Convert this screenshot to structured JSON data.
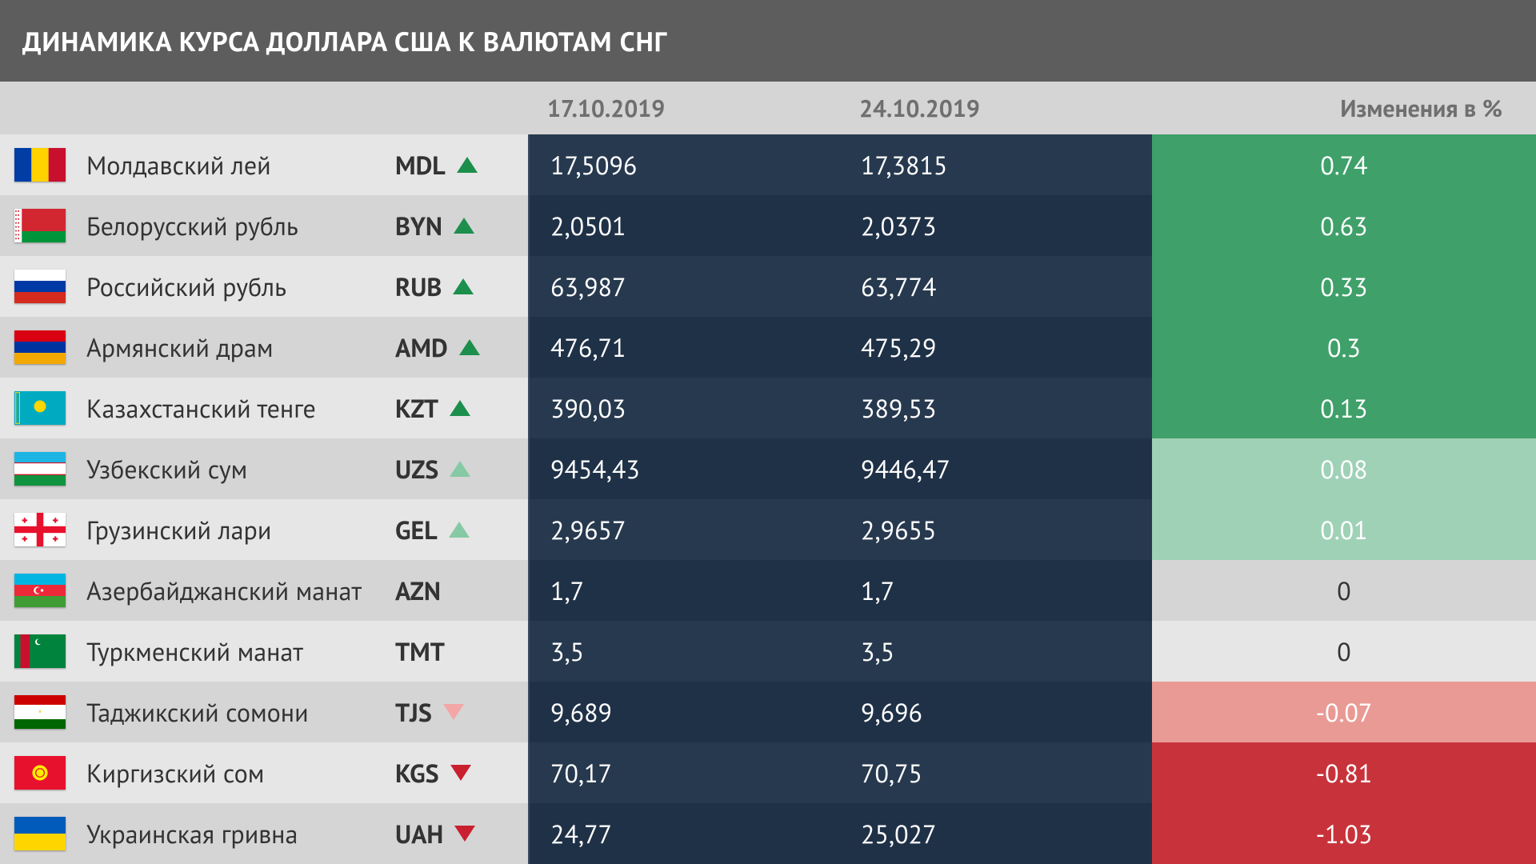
{
  "title": "ДИНАМИКА КУРСА ДОЛЛАРА США К ВАЛЮТАМ СНГ",
  "columns": {
    "date1": "17.10.2019",
    "date2": "24.10.2019",
    "change": "Изменения в %"
  },
  "colors": {
    "page_bg": "#5d5d5d",
    "header_bg": "#d5d5d5",
    "header_text": "#6f6f6f",
    "row_bg": "#e6e6e6",
    "row_alt_bg": "#d5d5d5",
    "value_bg_a": "#27394e",
    "value_bg_b": "#1f3147",
    "arrow_up_strong": "#1c8f4c",
    "arrow_up_light": "#86c9a5",
    "arrow_down_light": "#f3a6a6",
    "arrow_down_strong": "#c8202f",
    "change_pos_strong": "#3fa06a",
    "change_pos_light": "#9fd1b6",
    "change_neutral_bg": "#e6e6e6",
    "change_neutral_alt_bg": "#d5d5d5",
    "change_neutral_text": "#333333",
    "change_neg_light": "#e99a94",
    "change_neg_strong": "#c8333b"
  },
  "rows": [
    {
      "name": "Молдавский лей",
      "code": "MDL",
      "v1": "17,5096",
      "v2": "17,3815",
      "change": "0.74",
      "arrow": "up",
      "arrow_color": "#1c8f4c",
      "change_bg": "#3fa06a",
      "change_text": "#ffffff",
      "flag_svg": "<svg viewBox='0 0 3 2'><rect width='1' height='2' fill='#003da5'/><rect x='1' width='1' height='2' fill='#ffd200'/><rect x='2' width='1' height='2' fill='#c8102e'/></svg>"
    },
    {
      "name": "Белорусский рубль",
      "code": "BYN",
      "v1": "2,0501",
      "v2": "2,0373",
      "change": "0.63",
      "arrow": "up",
      "arrow_color": "#1c8f4c",
      "change_bg": "#3fa06a",
      "change_text": "#ffffff",
      "flag_svg": "<svg viewBox='0 0 9 6'><rect width='9' height='4' fill='#d22730'/><rect y='4' width='9' height='2' fill='#00953b'/><rect width='1.3' height='6' fill='#fff'/><g fill='#d22730'><rect x='0.15' y='0.3' width='0.25' height='0.25'/><rect x='0.6' y='0.3' width='0.25' height='0.25'/><rect x='0.15' y='1.0' width='0.25' height='0.25'/><rect x='0.6' y='1.0' width='0.25' height='0.25'/><rect x='0.15' y='1.7' width='0.25' height='0.25'/><rect x='0.6' y='1.7' width='0.25' height='0.25'/><rect x='0.15' y='2.4' width='0.25' height='0.25'/><rect x='0.6' y='2.4' width='0.25' height='0.25'/><rect x='0.15' y='3.1' width='0.25' height='0.25'/><rect x='0.6' y='3.1' width='0.25' height='0.25'/><rect x='0.15' y='3.8' width='0.25' height='0.25'/><rect x='0.6' y='3.8' width='0.25' height='0.25'/><rect x='0.15' y='4.5' width='0.25' height='0.25'/><rect x='0.6' y='4.5' width='0.25' height='0.25'/><rect x='0.15' y='5.2' width='0.25' height='0.25'/><rect x='0.6' y='5.2' width='0.25' height='0.25'/></g></svg>"
    },
    {
      "name": "Российский рубль",
      "code": "RUB",
      "v1": "63,987",
      "v2": "63,774",
      "change": "0.33",
      "arrow": "up",
      "arrow_color": "#1c8f4c",
      "change_bg": "#3fa06a",
      "change_text": "#ffffff",
      "flag_svg": "<svg viewBox='0 0 3 2'><rect width='3' height='2' fill='#fff'/><rect y='0.667' width='3' height='0.667' fill='#0039a6'/><rect y='1.333' width='3' height='0.667' fill='#d52b1e'/></svg>"
    },
    {
      "name": "Армянский драм",
      "code": "AMD",
      "v1": "476,71",
      "v2": "475,29",
      "change": "0.3",
      "arrow": "up",
      "arrow_color": "#1c8f4c",
      "change_bg": "#3fa06a",
      "change_text": "#ffffff",
      "flag_svg": "<svg viewBox='0 0 3 2'><rect width='3' height='0.667' fill='#d90012'/><rect y='0.667' width='3' height='0.667' fill='#0033a0'/><rect y='1.333' width='3' height='0.667' fill='#f2a800'/></svg>"
    },
    {
      "name": "Казахстанский тенге",
      "code": "KZT",
      "v1": "390,03",
      "v2": "389,53",
      "change": "0.13",
      "arrow": "up",
      "arrow_color": "#1c8f4c",
      "change_bg": "#3fa06a",
      "change_text": "#ffffff",
      "flag_svg": "<svg viewBox='0 0 3 2'><rect width='3' height='2' fill='#00abc2'/><circle cx='1.5' cy='0.9' r='0.35' fill='#ffd700'/><rect x='0.08' y='0.08' width='0.22' height='1.84' fill='none' stroke='#ffd700' stroke-width='0.05'/></svg>"
    },
    {
      "name": "Узбекский сум",
      "code": "UZS",
      "v1": "9454,43",
      "v2": "9446,47",
      "change": "0.08",
      "arrow": "up",
      "arrow_color": "#86c9a5",
      "change_bg": "#9fd1b6",
      "change_text": "#ffffff",
      "flag_svg": "<svg viewBox='0 0 3 2'><rect width='3' height='0.62' fill='#1eb5e4'/><rect y='0.62' width='3' height='0.06' fill='#ce1126'/><rect y='0.68' width='3' height='0.64' fill='#fff'/><rect y='1.32' width='3' height='0.06' fill='#ce1126'/><rect y='1.38' width='3' height='0.62' fill='#10933e'/></svg>"
    },
    {
      "name": "Грузинский лари",
      "code": "GEL",
      "v1": "2,9657",
      "v2": "2,9655",
      "change": "0.01",
      "arrow": "up",
      "arrow_color": "#86c9a5",
      "change_bg": "#9fd1b6",
      "change_text": "#ffffff",
      "flag_svg": "<svg viewBox='0 0 3 2'><rect width='3' height='2' fill='#fff'/><rect x='1.3' width='0.4' height='2' fill='#e8112d'/><rect y='0.8' width='3' height='0.4' fill='#e8112d'/><g fill='#e8112d'><rect x='0.55' y='0.3' width='0.1' height='0.3'/><rect x='0.45' y='0.4' width='0.3' height='0.1'/><rect x='2.35' y='0.3' width='0.1' height='0.3'/><rect x='2.25' y='0.4' width='0.3' height='0.1'/><rect x='0.55' y='1.4' width='0.1' height='0.3'/><rect x='0.45' y='1.5' width='0.3' height='0.1'/><rect x='2.35' y='1.4' width='0.1' height='0.3'/><rect x='2.25' y='1.5' width='0.3' height='0.1'/></g></svg>"
    },
    {
      "name": "Азербайджанский манат",
      "code": "AZN",
      "v1": "1,7",
      "v2": "1,7",
      "change": "0",
      "arrow": "none",
      "arrow_color": "",
      "change_bg": "#d5d5d5",
      "change_text": "#333333",
      "flag_svg": "<svg viewBox='0 0 3 2'><rect width='3' height='0.667' fill='#00b5e2'/><rect y='0.667' width='3' height='0.667' fill='#ed2939'/><rect y='1.333' width='3' height='0.667' fill='#3f9c35'/><circle cx='1.35' cy='1' r='0.22' fill='#fff'/><circle cx='1.42' cy='1' r='0.18' fill='#ed2939'/><circle cx='1.62' cy='1' r='0.08' fill='#fff'/></svg>"
    },
    {
      "name": "Туркменский манат",
      "code": "TMT",
      "v1": "3,5",
      "v2": "3,5",
      "change": "0",
      "arrow": "none",
      "arrow_color": "",
      "change_bg": "#e6e6e6",
      "change_text": "#333333",
      "flag_svg": "<svg viewBox='0 0 3 2'><rect width='3' height='2' fill='#00843d'/><rect x='0.35' width='0.55' height='2' fill='#c8102e'/><circle cx='1.4' cy='0.45' r='0.18' fill='#fff'/><circle cx='1.47' cy='0.42' r='0.16' fill='#00843d'/></svg>"
    },
    {
      "name": "Таджикский сомони",
      "code": "TJS",
      "v1": "9,689",
      "v2": "9,696",
      "change": "-0.07",
      "arrow": "down",
      "arrow_color": "#f3a6a6",
      "change_bg": "#e99a94",
      "change_text": "#ffffff",
      "flag_svg": "<svg viewBox='0 0 3 2'><rect width='3' height='0.57' fill='#cc0000'/><rect y='0.57' width='3' height='0.86' fill='#fff'/><rect y='1.43' width='3' height='0.57' fill='#006600'/><g fill='#f8c300'><path d='M1.5 0.85 l0.06 0.18 h-0.12 z'/></g></svg>"
    },
    {
      "name": "Киргизский сом",
      "code": "KGS",
      "v1": "70,17",
      "v2": "70,75",
      "change": "-0.81",
      "arrow": "down",
      "arrow_color": "#c8202f",
      "change_bg": "#c8333b",
      "change_text": "#ffffff",
      "flag_svg": "<svg viewBox='0 0 3 2'><rect width='3' height='2' fill='#e8112d'/><circle cx='1.5' cy='1' r='0.45' fill='#ffed00'/><circle cx='1.5' cy='1' r='0.28' fill='#e8112d'/><circle cx='1.5' cy='1' r='0.22' fill='#ffed00'/></svg>"
    },
    {
      "name": "Украинская гривна",
      "code": "UAH",
      "v1": "24,77",
      "v2": "25,027",
      "change": "-1.03",
      "arrow": "down",
      "arrow_color": "#c8202f",
      "change_bg": "#c8333b",
      "change_text": "#ffffff",
      "flag_svg": "<svg viewBox='0 0 3 2'><rect width='3' height='1' fill='#005bbb'/><rect y='1' width='3' height='1' fill='#ffd500'/></svg>"
    }
  ]
}
